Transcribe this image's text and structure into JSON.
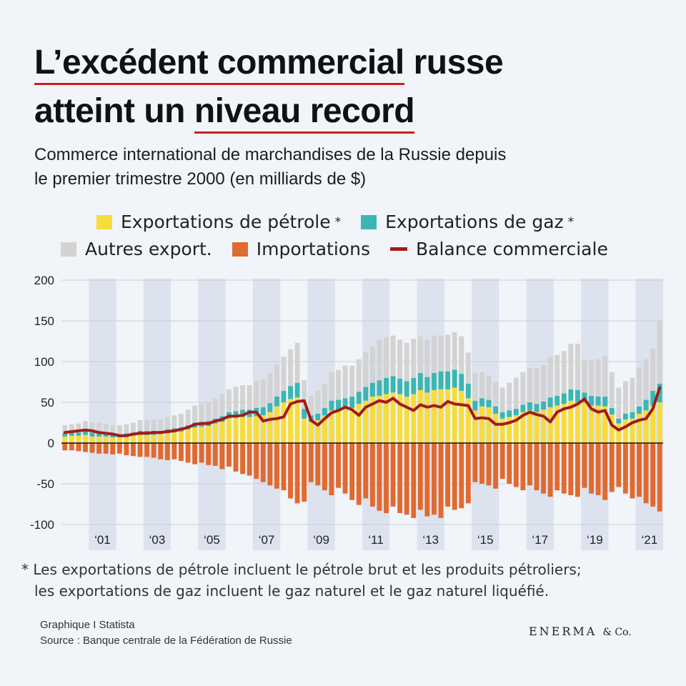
{
  "title": {
    "line1_underlined": "L’excédent commercial",
    "line1_rest": " russe",
    "line2_start": "atteint un ",
    "line2_underlined": "niveau record"
  },
  "subtitle": {
    "line1": "Commerce international de marchandises de la Russie depuis",
    "line2": "le premier trimestre 2000 (en milliards de $)"
  },
  "legend": {
    "oil": "Exportations de pétrole",
    "gas": "Exportations de gaz",
    "other": "Autres export.",
    "imports": "Importations",
    "balance": "Balance commerciale",
    "star": "*"
  },
  "colors": {
    "oil": "#f7dc3a",
    "gas": "#3bb6b3",
    "other": "#d3d3d3",
    "imports": "#e06a30",
    "balance": "#a31a1a",
    "band": "#dde3ee",
    "underline": "#cc1f1f"
  },
  "chart_data": {
    "type": "bar",
    "stacked": true,
    "title": "Commerce international de marchandises de la Russie depuis le premier trimestre 2000 (en milliards de $)",
    "xlabel": "",
    "ylabel": "",
    "ylim": [
      -100,
      200
    ],
    "yticks": [
      200,
      150,
      100,
      50,
      0,
      -50,
      -100
    ],
    "ytick_labels": [
      "200",
      "150",
      "100",
      "50",
      "0",
      "-50",
      "-100"
    ],
    "xtick_labels": [
      {
        "label": "‘01",
        "index": 6
      },
      {
        "label": "‘03",
        "index": 14
      },
      {
        "label": "‘05",
        "index": 22
      },
      {
        "label": "‘07",
        "index": 30
      },
      {
        "label": "‘09",
        "index": 38
      },
      {
        "label": "‘11",
        "index": 46
      },
      {
        "label": "‘13",
        "index": 54
      },
      {
        "label": "‘15",
        "index": 62
      },
      {
        "label": "‘17",
        "index": 70
      },
      {
        "label": "‘19",
        "index": 78
      },
      {
        "label": "‘21",
        "index": 86
      }
    ],
    "shaded_years_start_index": [
      4,
      12,
      20,
      28,
      36,
      44,
      52,
      60,
      68,
      76,
      84
    ],
    "grid": true,
    "categories": [
      "2000 Q1",
      "2000 Q2",
      "2000 Q3",
      "2000 Q4",
      "2001 Q1",
      "2001 Q2",
      "2001 Q3",
      "2001 Q4",
      "2002 Q1",
      "2002 Q2",
      "2002 Q3",
      "2002 Q4",
      "2003 Q1",
      "2003 Q2",
      "2003 Q3",
      "2003 Q4",
      "2004 Q1",
      "2004 Q2",
      "2004 Q3",
      "2004 Q4",
      "2005 Q1",
      "2005 Q2",
      "2005 Q3",
      "2005 Q4",
      "2006 Q1",
      "2006 Q2",
      "2006 Q3",
      "2006 Q4",
      "2007 Q1",
      "2007 Q2",
      "2007 Q3",
      "2007 Q4",
      "2008 Q1",
      "2008 Q2",
      "2008 Q3",
      "2008 Q4",
      "2009 Q1",
      "2009 Q2",
      "2009 Q3",
      "2009 Q4",
      "2010 Q1",
      "2010 Q2",
      "2010 Q3",
      "2010 Q4",
      "2011 Q1",
      "2011 Q2",
      "2011 Q3",
      "2011 Q4",
      "2012 Q1",
      "2012 Q2",
      "2012 Q3",
      "2012 Q4",
      "2013 Q1",
      "2013 Q2",
      "2013 Q3",
      "2013 Q4",
      "2014 Q1",
      "2014 Q2",
      "2014 Q3",
      "2014 Q4",
      "2015 Q1",
      "2015 Q2",
      "2015 Q3",
      "2015 Q4",
      "2016 Q1",
      "2016 Q2",
      "2016 Q3",
      "2016 Q4",
      "2017 Q1",
      "2017 Q2",
      "2017 Q3",
      "2017 Q4",
      "2018 Q1",
      "2018 Q2",
      "2018 Q3",
      "2018 Q4",
      "2019 Q1",
      "2019 Q2",
      "2019 Q3",
      "2019 Q4",
      "2020 Q1",
      "2020 Q2",
      "2020 Q3",
      "2020 Q4",
      "2021 Q1",
      "2021 Q2",
      "2021 Q3",
      "2021 Q4"
    ],
    "series": [
      {
        "name": "Exportations de pétrole",
        "key": "oil",
        "values": [
          8,
          9,
          9,
          10,
          8,
          8,
          8,
          7,
          7,
          8,
          9,
          10,
          10,
          10,
          11,
          12,
          13,
          14,
          17,
          19,
          20,
          21,
          24,
          26,
          30,
          31,
          32,
          32,
          33,
          34,
          38,
          45,
          50,
          54,
          56,
          30,
          26,
          28,
          34,
          40,
          40,
          42,
          43,
          48,
          52,
          57,
          58,
          60,
          62,
          60,
          57,
          60,
          65,
          62,
          65,
          66,
          66,
          68,
          64,
          55,
          40,
          45,
          44,
          36,
          30,
          32,
          34,
          38,
          40,
          38,
          41,
          44,
          46,
          48,
          52,
          50,
          50,
          46,
          46,
          45,
          35,
          24,
          29,
          30,
          36,
          40,
          46,
          50
        ]
      },
      {
        "name": "Exportations de gaz",
        "key": "gas",
        "values": [
          4,
          4,
          4,
          5,
          5,
          5,
          4,
          4,
          4,
          4,
          4,
          5,
          5,
          5,
          4,
          5,
          5,
          5,
          5,
          6,
          6,
          6,
          6,
          7,
          8,
          8,
          9,
          9,
          10,
          10,
          11,
          12,
          14,
          16,
          18,
          12,
          8,
          8,
          9,
          12,
          13,
          13,
          14,
          15,
          17,
          17,
          19,
          20,
          20,
          19,
          19,
          20,
          21,
          19,
          21,
          22,
          22,
          22,
          21,
          18,
          12,
          10,
          9,
          9,
          8,
          8,
          8,
          9,
          10,
          10,
          10,
          12,
          12,
          13,
          14,
          15,
          12,
          12,
          11,
          12,
          8,
          6,
          7,
          8,
          9,
          13,
          18,
          23
        ]
      },
      {
        "name": "Autres export.",
        "key": "other",
        "values": [
          10,
          10,
          11,
          12,
          12,
          12,
          12,
          11,
          11,
          11,
          12,
          13,
          13,
          14,
          14,
          15,
          16,
          17,
          19,
          21,
          22,
          23,
          25,
          27,
          28,
          30,
          30,
          30,
          33,
          34,
          37,
          40,
          42,
          45,
          49,
          35,
          24,
          28,
          30,
          35,
          37,
          40,
          38,
          40,
          43,
          45,
          50,
          50,
          50,
          48,
          47,
          48,
          45,
          46,
          46,
          44,
          45,
          46,
          46,
          38,
          34,
          32,
          30,
          30,
          30,
          34,
          38,
          40,
          42,
          44,
          45,
          50,
          50,
          52,
          56,
          57,
          40,
          44,
          46,
          50,
          44,
          38,
          40,
          42,
          48,
          50,
          52,
          78
        ]
      },
      {
        "name": "Importations",
        "key": "imports",
        "values": [
          -9,
          -9,
          -10,
          -11,
          -12,
          -13,
          -13,
          -14,
          -13,
          -15,
          -16,
          -17,
          -17,
          -18,
          -20,
          -21,
          -20,
          -22,
          -24,
          -26,
          -24,
          -27,
          -28,
          -32,
          -29,
          -35,
          -38,
          -40,
          -44,
          -48,
          -52,
          -56,
          -58,
          -68,
          -74,
          -72,
          -48,
          -52,
          -58,
          -64,
          -55,
          -62,
          -70,
          -76,
          -68,
          -78,
          -83,
          -86,
          -78,
          -86,
          -88,
          -92,
          -82,
          -90,
          -88,
          -92,
          -78,
          -82,
          -80,
          -74,
          -48,
          -50,
          -52,
          -56,
          -44,
          -50,
          -54,
          -58,
          -52,
          -58,
          -62,
          -66,
          -58,
          -62,
          -64,
          -66,
          -55,
          -62,
          -64,
          -70,
          -60,
          -54,
          -62,
          -68,
          -66,
          -74,
          -78,
          -84
        ]
      },
      {
        "name": "Balance commerciale",
        "key": "balance",
        "type": "line",
        "values": [
          13,
          14,
          15,
          16,
          15,
          13,
          12,
          11,
          9,
          9,
          11,
          12,
          12,
          13,
          13,
          14,
          15,
          17,
          19,
          23,
          24,
          24,
          27,
          29,
          33,
          33,
          34,
          38,
          38,
          27,
          29,
          30,
          32,
          48,
          51,
          52,
          28,
          22,
          30,
          37,
          40,
          44,
          41,
          34,
          44,
          48,
          52,
          50,
          55,
          48,
          44,
          40,
          47,
          44,
          46,
          44,
          51,
          48,
          47,
          46,
          30,
          31,
          30,
          23,
          23,
          25,
          28,
          34,
          38,
          35,
          33,
          26,
          38,
          42,
          44,
          48,
          54,
          42,
          38,
          40,
          22,
          16,
          20,
          25,
          28,
          30,
          42,
          68
        ]
      }
    ]
  },
  "footnote": {
    "line1": "* Les exportations de pétrole incluent le pétrole brut et les produits pétroliers;",
    "line2": "les exportations de gaz incluent le gaz naturel et le gaz naturel liquéfié."
  },
  "credits": {
    "line1": "Graphique I Statista",
    "line2": "Source : Banque centrale de la Fédération de Russie"
  },
  "brand": {
    "name": "ENERMA",
    "suffix": "& Co."
  }
}
